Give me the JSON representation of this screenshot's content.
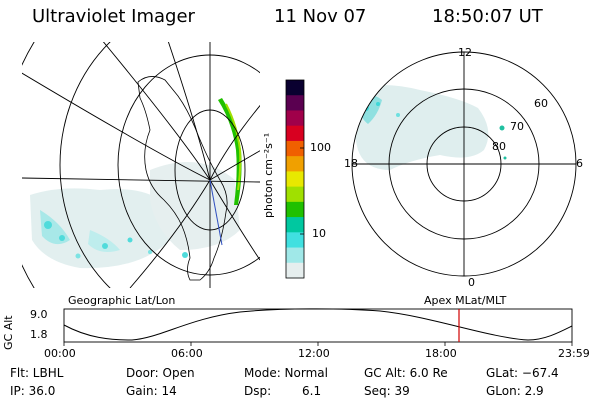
{
  "header": {
    "title": "Ultraviolet Imager",
    "date": "11 Nov 07",
    "time": "18:50:07 UT"
  },
  "colorbar": {
    "label": "photon cm⁻²s⁻¹",
    "ticks": [
      "100",
      "10"
    ],
    "colors": [
      "#0a0030",
      "#5a0050",
      "#a0004a",
      "#d80020",
      "#f06000",
      "#f0a000",
      "#e8e800",
      "#a0e000",
      "#20c000",
      "#00c8a0",
      "#40e0e0",
      "#a0e8e8",
      "#e6eeee"
    ]
  },
  "left_map": {
    "caption": "Geographic Lat/Lon"
  },
  "right_map": {
    "caption": "Apex MLat/MLT",
    "mlt_labels": {
      "top": "12",
      "left": "18",
      "right": "6",
      "bottom": "0"
    },
    "lat_labels": [
      "60",
      "70",
      "80"
    ]
  },
  "altitude_panel": {
    "ylabel": "GC Alt",
    "yticks": [
      "9.0",
      "1.8"
    ],
    "xticks": [
      "00:00",
      "06:00",
      "12:00",
      "18:00",
      "23:59"
    ],
    "marker_color": "#d00000"
  },
  "info": {
    "filter": "Flt: LBHL",
    "door": "Door: Open",
    "mode": "Mode: Normal",
    "gc_alt": "GC Alt: 6.0 Re",
    "glat": "GLat: −67.4",
    "ip": "IP: 36.0",
    "gain": "Gain: 14",
    "dsp_label": "Dsp:",
    "dsp_value": "6.1",
    "seq": "Seq: 39",
    "glon": "GLon: 2.9"
  }
}
